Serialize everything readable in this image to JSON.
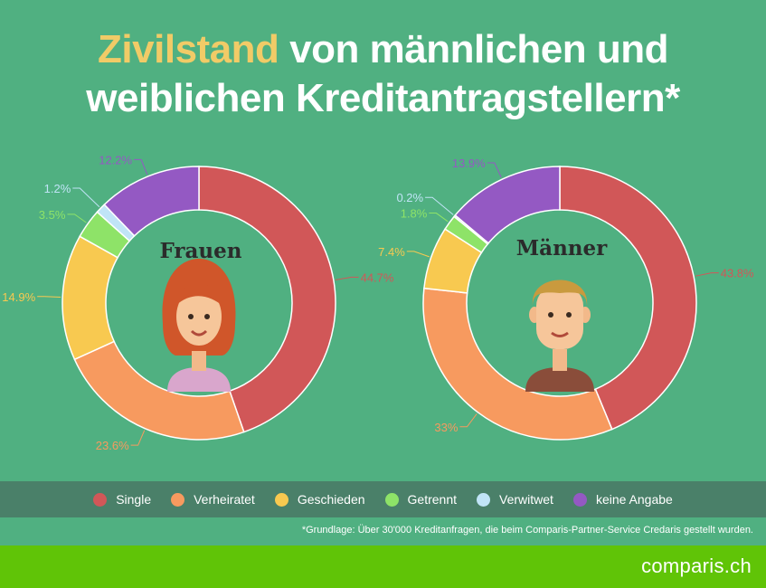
{
  "title": {
    "highlight": "Zivilstand",
    "line1_rest": " von männlichen und",
    "line2": "weiblichen Kreditantragstellern*"
  },
  "colors": {
    "background": "#50b081",
    "title_highlight": "#f1cb67",
    "legend_bar": "#4a8069",
    "footer_bar": "#60c407"
  },
  "chart_data": [
    {
      "type": "donut",
      "label": "Frauen",
      "categories": [
        "Single",
        "Verheiratet",
        "Geschieden",
        "Getrennt",
        "Verwitwet",
        "keine Angabe"
      ],
      "values": [
        44.7,
        23.6,
        14.9,
        3.5,
        1.2,
        12.2
      ],
      "value_labels": [
        "44.7%",
        "23.6%",
        "14.9%",
        "3.5%",
        "1.2%",
        "12.2%"
      ],
      "colors": [
        "#d15758",
        "#f79a5f",
        "#f8c950",
        "#8ee368",
        "#c0e4f6",
        "#9459c3"
      ],
      "illustration": "woman-avatar"
    },
    {
      "type": "donut",
      "label": "Männer",
      "categories": [
        "Single",
        "Verheiratet",
        "Geschieden",
        "Getrennt",
        "Verwitwet",
        "keine Angabe"
      ],
      "values": [
        43.8,
        33,
        7.4,
        1.8,
        0.2,
        13.9
      ],
      "value_labels": [
        "43.8%",
        "33%",
        "7.4%",
        "1.8%",
        "0.2%",
        "13.9%"
      ],
      "colors": [
        "#d15758",
        "#f79a5f",
        "#f8c950",
        "#8ee368",
        "#c0e4f6",
        "#9459c3"
      ],
      "illustration": "man-avatar"
    }
  ],
  "legend": {
    "items": [
      {
        "label": "Single",
        "color": "#d15758"
      },
      {
        "label": "Verheiratet",
        "color": "#f79a5f"
      },
      {
        "label": "Geschieden",
        "color": "#f8c950"
      },
      {
        "label": "Getrennt",
        "color": "#8ee368"
      },
      {
        "label": "Verwitwet",
        "color": "#c0e4f6"
      },
      {
        "label": "keine Angabe",
        "color": "#9459c3"
      }
    ]
  },
  "footnote": "*Grundlage: Über 30'000 Kreditanfragen, die beim Comparis-Partner-Service Credaris gestellt wurden.",
  "brand": {
    "text": "comparis.ch"
  }
}
